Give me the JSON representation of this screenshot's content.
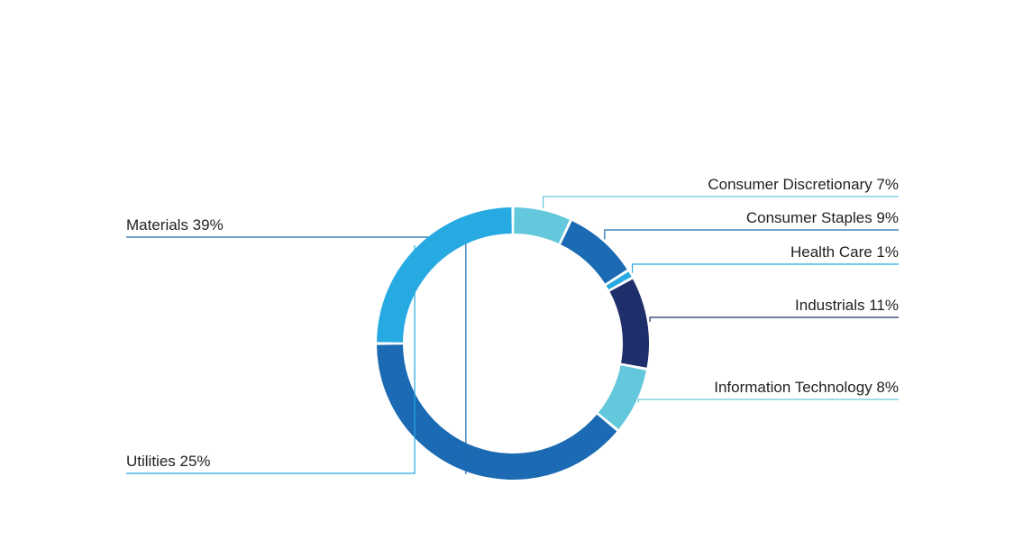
{
  "chart_data": {
    "type": "pie",
    "variant": "donut",
    "series": [
      {
        "categories": [
          "Consumer Discretionary",
          "Consumer Staples",
          "Health Care",
          "Industrials",
          "Information Technology",
          "Materials",
          "Utilities"
        ],
        "values": [
          7,
          9,
          1,
          11,
          8,
          39,
          25
        ],
        "labels": [
          "Consumer Discretionary 7%",
          "Consumer Staples 9%",
          "Health Care 1%",
          "Industrials 11%",
          "Information Technology 8%",
          "Materials 39%",
          "Utilities 25%"
        ],
        "colors": [
          "#63c8dc",
          "#1b6ab3",
          "#27aae2",
          "#1f2f6b",
          "#63c8dc",
          "#1b6ab3",
          "#27aae2"
        ],
        "label_side": [
          "right",
          "right",
          "right",
          "right",
          "right",
          "left",
          "left"
        ]
      }
    ]
  }
}
